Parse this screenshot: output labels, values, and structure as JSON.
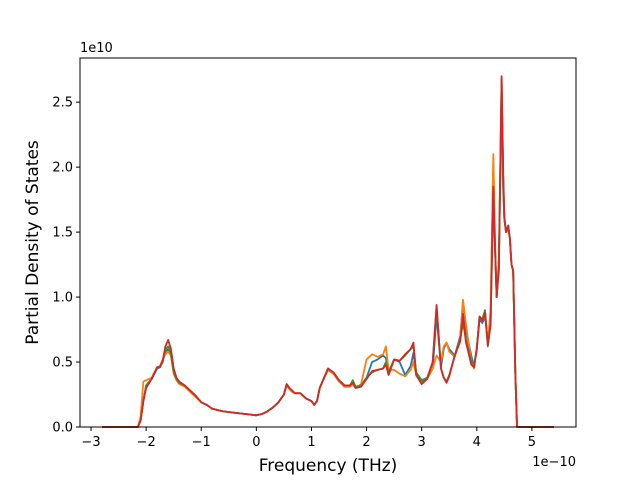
{
  "chart_data": {
    "type": "line",
    "title": "",
    "xlabel": "Frequency (THz)",
    "ylabel": "Partial Density of States",
    "x_offset_label": "1e−10",
    "y_offset_label": "1e10",
    "x_scale_factor": 1e-10,
    "y_scale_factor": 10000000000.0,
    "xlim": [
      -3.2,
      5.8
    ],
    "ylim": [
      0.0,
      2.84
    ],
    "x_ticks": [
      -3,
      -2,
      -1,
      0,
      1,
      2,
      3,
      4,
      5
    ],
    "x_tick_labels": [
      "−3",
      "−2",
      "−1",
      "0",
      "1",
      "2",
      "3",
      "4",
      "5"
    ],
    "y_ticks": [
      0.0,
      0.5,
      1.0,
      1.5,
      2.0,
      2.5
    ],
    "y_tick_labels": [
      "0.0",
      "0.5",
      "1.0",
      "1.5",
      "2.0",
      "2.5"
    ],
    "grid": false,
    "legend": "none",
    "series": [
      {
        "color": "#1f77b4",
        "x": [
          -2.8,
          -2.15,
          -2.1,
          -2.05,
          -2.0,
          -1.9,
          -1.8,
          -1.75,
          -1.7,
          -1.65,
          -1.6,
          -1.55,
          -1.5,
          -1.45,
          -1.4,
          -1.3,
          -1.2,
          -1.1,
          -1.0,
          -0.9,
          -0.8,
          -0.6,
          -0.4,
          -0.2,
          0.0,
          0.1,
          0.2,
          0.3,
          0.4,
          0.5,
          0.55,
          0.6,
          0.65,
          0.7,
          0.8,
          0.9,
          1.0,
          1.05,
          1.1,
          1.15,
          1.2,
          1.3,
          1.4,
          1.5,
          1.6,
          1.7,
          1.75,
          1.8,
          1.9,
          2.0,
          2.1,
          2.2,
          2.3,
          2.35,
          2.4,
          2.5,
          2.6,
          2.7,
          2.8,
          2.85,
          2.9,
          3.0,
          3.1,
          3.2,
          3.27,
          3.35,
          3.4,
          3.45,
          3.5,
          3.6,
          3.7,
          3.75,
          3.8,
          3.9,
          3.95,
          4.0,
          4.05,
          4.1,
          4.15,
          4.2,
          4.25,
          4.3,
          4.33,
          4.36,
          4.4,
          4.45,
          4.48,
          4.5,
          4.53,
          4.57,
          4.6,
          4.63,
          4.66,
          4.7,
          4.73,
          4.75,
          4.76,
          4.8,
          5.0,
          5.4
        ],
        "y": [
          0,
          0,
          0.05,
          0.2,
          0.32,
          0.37,
          0.45,
          0.46,
          0.5,
          0.58,
          0.6,
          0.55,
          0.42,
          0.37,
          0.34,
          0.32,
          0.28,
          0.24,
          0.19,
          0.17,
          0.14,
          0.12,
          0.11,
          0.1,
          0.09,
          0.1,
          0.12,
          0.15,
          0.19,
          0.25,
          0.33,
          0.3,
          0.28,
          0.26,
          0.26,
          0.22,
          0.2,
          0.17,
          0.2,
          0.3,
          0.35,
          0.44,
          0.41,
          0.35,
          0.31,
          0.31,
          0.35,
          0.31,
          0.32,
          0.38,
          0.5,
          0.52,
          0.55,
          0.53,
          0.42,
          0.52,
          0.5,
          0.4,
          0.47,
          0.57,
          0.42,
          0.36,
          0.38,
          0.45,
          0.86,
          0.46,
          0.6,
          0.65,
          0.6,
          0.55,
          0.7,
          0.97,
          0.75,
          0.55,
          0.46,
          0.6,
          0.83,
          0.8,
          0.85,
          0.65,
          0.85,
          2.0,
          1.4,
          1.0,
          1.25,
          2.55,
          1.8,
          1.6,
          1.5,
          1.55,
          1.45,
          1.25,
          1.2,
          0.4,
          0,
          0,
          0,
          0,
          0,
          0
        ]
      },
      {
        "color": "#ff7f0e",
        "x": [
          -2.8,
          -2.15,
          -2.1,
          -2.05,
          -2.0,
          -1.9,
          -1.8,
          -1.75,
          -1.7,
          -1.65,
          -1.6,
          -1.55,
          -1.5,
          -1.45,
          -1.4,
          -1.3,
          -1.2,
          -1.1,
          -1.0,
          -0.9,
          -0.8,
          -0.6,
          -0.4,
          -0.2,
          0.0,
          0.1,
          0.2,
          0.3,
          0.4,
          0.5,
          0.55,
          0.6,
          0.65,
          0.7,
          0.8,
          0.9,
          1.0,
          1.05,
          1.1,
          1.15,
          1.2,
          1.3,
          1.4,
          1.5,
          1.6,
          1.7,
          1.75,
          1.8,
          1.9,
          2.0,
          2.1,
          2.2,
          2.3,
          2.35,
          2.4,
          2.5,
          2.6,
          2.7,
          2.8,
          2.85,
          2.9,
          3.0,
          3.1,
          3.2,
          3.27,
          3.35,
          3.4,
          3.45,
          3.5,
          3.6,
          3.7,
          3.75,
          3.8,
          3.9,
          3.95,
          4.0,
          4.05,
          4.1,
          4.15,
          4.2,
          4.25,
          4.3,
          4.33,
          4.36,
          4.4,
          4.45,
          4.48,
          4.5,
          4.53,
          4.57,
          4.6,
          4.63,
          4.66,
          4.7,
          4.73,
          4.75,
          4.76,
          4.8,
          5.0,
          5.4
        ],
        "y": [
          0,
          0,
          0.08,
          0.35,
          0.36,
          0.38,
          0.46,
          0.47,
          0.52,
          0.56,
          0.58,
          0.55,
          0.41,
          0.36,
          0.33,
          0.31,
          0.27,
          0.23,
          0.19,
          0.17,
          0.14,
          0.12,
          0.11,
          0.1,
          0.09,
          0.1,
          0.12,
          0.15,
          0.19,
          0.25,
          0.32,
          0.29,
          0.27,
          0.26,
          0.26,
          0.22,
          0.2,
          0.17,
          0.2,
          0.3,
          0.35,
          0.44,
          0.41,
          0.35,
          0.31,
          0.31,
          0.33,
          0.3,
          0.33,
          0.52,
          0.56,
          0.54,
          0.56,
          0.62,
          0.44,
          0.44,
          0.41,
          0.39,
          0.44,
          0.5,
          0.4,
          0.35,
          0.37,
          0.45,
          0.55,
          0.5,
          0.62,
          0.65,
          0.58,
          0.54,
          0.68,
          0.98,
          0.8,
          0.5,
          0.45,
          0.62,
          0.85,
          0.82,
          0.86,
          0.65,
          0.9,
          2.1,
          1.45,
          1.0,
          1.3,
          2.65,
          1.85,
          1.6,
          1.5,
          1.52,
          1.45,
          1.25,
          1.2,
          0.4,
          0,
          0,
          0,
          0,
          0,
          0
        ]
      },
      {
        "color": "#2ca02c",
        "x": [
          -2.8,
          -2.15,
          -2.1,
          -2.05,
          -2.0,
          -1.9,
          -1.8,
          -1.75,
          -1.7,
          -1.65,
          -1.6,
          -1.55,
          -1.5,
          -1.45,
          -1.4,
          -1.3,
          -1.2,
          -1.1,
          -1.0,
          -0.9,
          -0.8,
          -0.6,
          -0.4,
          -0.2,
          0.0,
          0.1,
          0.2,
          0.3,
          0.4,
          0.5,
          0.55,
          0.6,
          0.65,
          0.7,
          0.8,
          0.9,
          1.0,
          1.05,
          1.1,
          1.15,
          1.2,
          1.3,
          1.4,
          1.5,
          1.6,
          1.7,
          1.75,
          1.8,
          1.9,
          2.0,
          2.1,
          2.2,
          2.3,
          2.35,
          2.4,
          2.5,
          2.6,
          2.7,
          2.8,
          2.85,
          2.9,
          3.0,
          3.1,
          3.2,
          3.27,
          3.35,
          3.4,
          3.45,
          3.5,
          3.6,
          3.7,
          3.75,
          3.8,
          3.9,
          3.95,
          4.0,
          4.05,
          4.1,
          4.15,
          4.2,
          4.25,
          4.3,
          4.33,
          4.36,
          4.4,
          4.45,
          4.48,
          4.5,
          4.53,
          4.57,
          4.6,
          4.63,
          4.66,
          4.7,
          4.73,
          4.75,
          4.76,
          4.8,
          5.0,
          5.4
        ],
        "y": [
          0,
          0,
          0.05,
          0.2,
          0.32,
          0.37,
          0.46,
          0.46,
          0.51,
          0.6,
          0.62,
          0.56,
          0.42,
          0.37,
          0.34,
          0.32,
          0.28,
          0.24,
          0.19,
          0.17,
          0.14,
          0.12,
          0.11,
          0.1,
          0.09,
          0.1,
          0.12,
          0.15,
          0.19,
          0.25,
          0.33,
          0.3,
          0.28,
          0.26,
          0.26,
          0.22,
          0.2,
          0.17,
          0.2,
          0.3,
          0.35,
          0.45,
          0.42,
          0.36,
          0.32,
          0.32,
          0.36,
          0.31,
          0.32,
          0.38,
          0.42,
          0.44,
          0.45,
          0.5,
          0.42,
          0.52,
          0.51,
          0.55,
          0.6,
          0.62,
          0.42,
          0.35,
          0.38,
          0.5,
          0.92,
          0.45,
          0.38,
          0.35,
          0.4,
          0.55,
          0.68,
          0.8,
          0.68,
          0.5,
          0.48,
          0.6,
          0.85,
          0.83,
          0.9,
          0.62,
          0.8,
          1.8,
          1.4,
          1.0,
          1.2,
          2.68,
          1.9,
          1.6,
          1.5,
          1.55,
          1.45,
          1.25,
          1.2,
          0.4,
          0,
          0,
          0,
          0,
          0,
          0
        ]
      },
      {
        "color": "#d62728",
        "x": [
          -2.8,
          -2.15,
          -2.1,
          -2.05,
          -2.0,
          -1.9,
          -1.8,
          -1.75,
          -1.7,
          -1.65,
          -1.6,
          -1.55,
          -1.5,
          -1.45,
          -1.4,
          -1.3,
          -1.2,
          -1.1,
          -1.0,
          -0.9,
          -0.8,
          -0.6,
          -0.4,
          -0.2,
          0.0,
          0.1,
          0.2,
          0.3,
          0.4,
          0.5,
          0.55,
          0.6,
          0.65,
          0.7,
          0.8,
          0.9,
          1.0,
          1.05,
          1.1,
          1.15,
          1.2,
          1.3,
          1.4,
          1.5,
          1.6,
          1.7,
          1.75,
          1.8,
          1.9,
          2.0,
          2.1,
          2.2,
          2.3,
          2.35,
          2.4,
          2.5,
          2.6,
          2.7,
          2.8,
          2.85,
          2.9,
          3.0,
          3.1,
          3.2,
          3.27,
          3.35,
          3.4,
          3.45,
          3.5,
          3.6,
          3.7,
          3.75,
          3.8,
          3.9,
          3.95,
          4.0,
          4.05,
          4.1,
          4.15,
          4.2,
          4.25,
          4.3,
          4.33,
          4.36,
          4.4,
          4.45,
          4.48,
          4.5,
          4.53,
          4.57,
          4.6,
          4.63,
          4.66,
          4.7,
          4.73,
          4.75,
          4.76,
          4.8,
          5.0,
          5.4
        ],
        "y": [
          0,
          0,
          0.05,
          0.2,
          0.3,
          0.37,
          0.46,
          0.46,
          0.51,
          0.62,
          0.67,
          0.6,
          0.45,
          0.38,
          0.35,
          0.32,
          0.28,
          0.24,
          0.19,
          0.17,
          0.14,
          0.12,
          0.11,
          0.1,
          0.09,
          0.1,
          0.12,
          0.15,
          0.19,
          0.25,
          0.33,
          0.3,
          0.28,
          0.26,
          0.26,
          0.22,
          0.2,
          0.17,
          0.2,
          0.3,
          0.35,
          0.45,
          0.42,
          0.36,
          0.32,
          0.32,
          0.34,
          0.3,
          0.31,
          0.37,
          0.43,
          0.44,
          0.45,
          0.48,
          0.4,
          0.52,
          0.51,
          0.56,
          0.6,
          0.65,
          0.4,
          0.33,
          0.37,
          0.5,
          0.94,
          0.45,
          0.38,
          0.34,
          0.39,
          0.55,
          0.66,
          0.87,
          0.66,
          0.48,
          0.46,
          0.6,
          0.85,
          0.82,
          0.88,
          0.63,
          0.78,
          1.85,
          1.38,
          1.0,
          1.22,
          2.7,
          1.95,
          1.62,
          1.5,
          1.55,
          1.45,
          1.25,
          1.2,
          0.4,
          0,
          0,
          0,
          0,
          0,
          0
        ]
      }
    ]
  }
}
